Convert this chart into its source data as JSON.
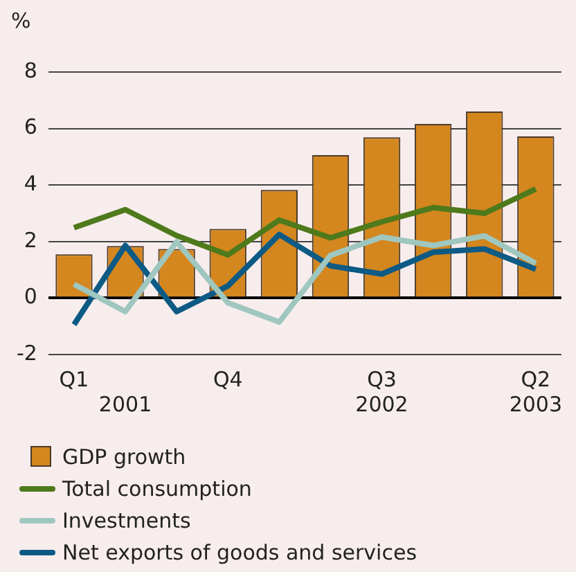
{
  "chart_data": {
    "type": "bar",
    "ylabel": "%",
    "categories": [
      "Q1",
      "\n2001",
      null,
      "Q4",
      null,
      null,
      "Q3\n2002",
      null,
      null,
      "Q2\n2003"
    ],
    "series": [
      {
        "name": "GDP growth",
        "color": "#d4861f",
        "values": [
          1.55,
          1.84,
          1.74,
          2.45,
          3.83,
          5.06,
          5.69,
          6.16,
          6.6,
          5.72
        ]
      },
      {
        "name": "Total consumption",
        "type": "line",
        "color": "#4e7a1c",
        "values": [
          2.49,
          3.13,
          2.21,
          1.53,
          2.76,
          2.13,
          2.7,
          3.2,
          3.0,
          3.86
        ]
      },
      {
        "name": "Investments",
        "type": "line",
        "color": "#9fc7c0",
        "values": [
          0.49,
          -0.48,
          1.99,
          -0.17,
          -0.85,
          1.51,
          2.16,
          1.86,
          2.2,
          1.23
        ]
      },
      {
        "name": "Net exports of goods and services",
        "type": "line",
        "color": "#0d5a85",
        "values": [
          -0.94,
          1.86,
          -0.48,
          0.43,
          2.25,
          1.14,
          0.85,
          1.62,
          1.74,
          1.02
        ]
      }
    ],
    "ylim": [
      -2,
      8
    ],
    "yticks": [
      -2,
      0,
      2,
      4,
      6,
      8
    ],
    "grid": "y",
    "legend": "bottom",
    "marker": "none",
    "line_style": "solid"
  }
}
